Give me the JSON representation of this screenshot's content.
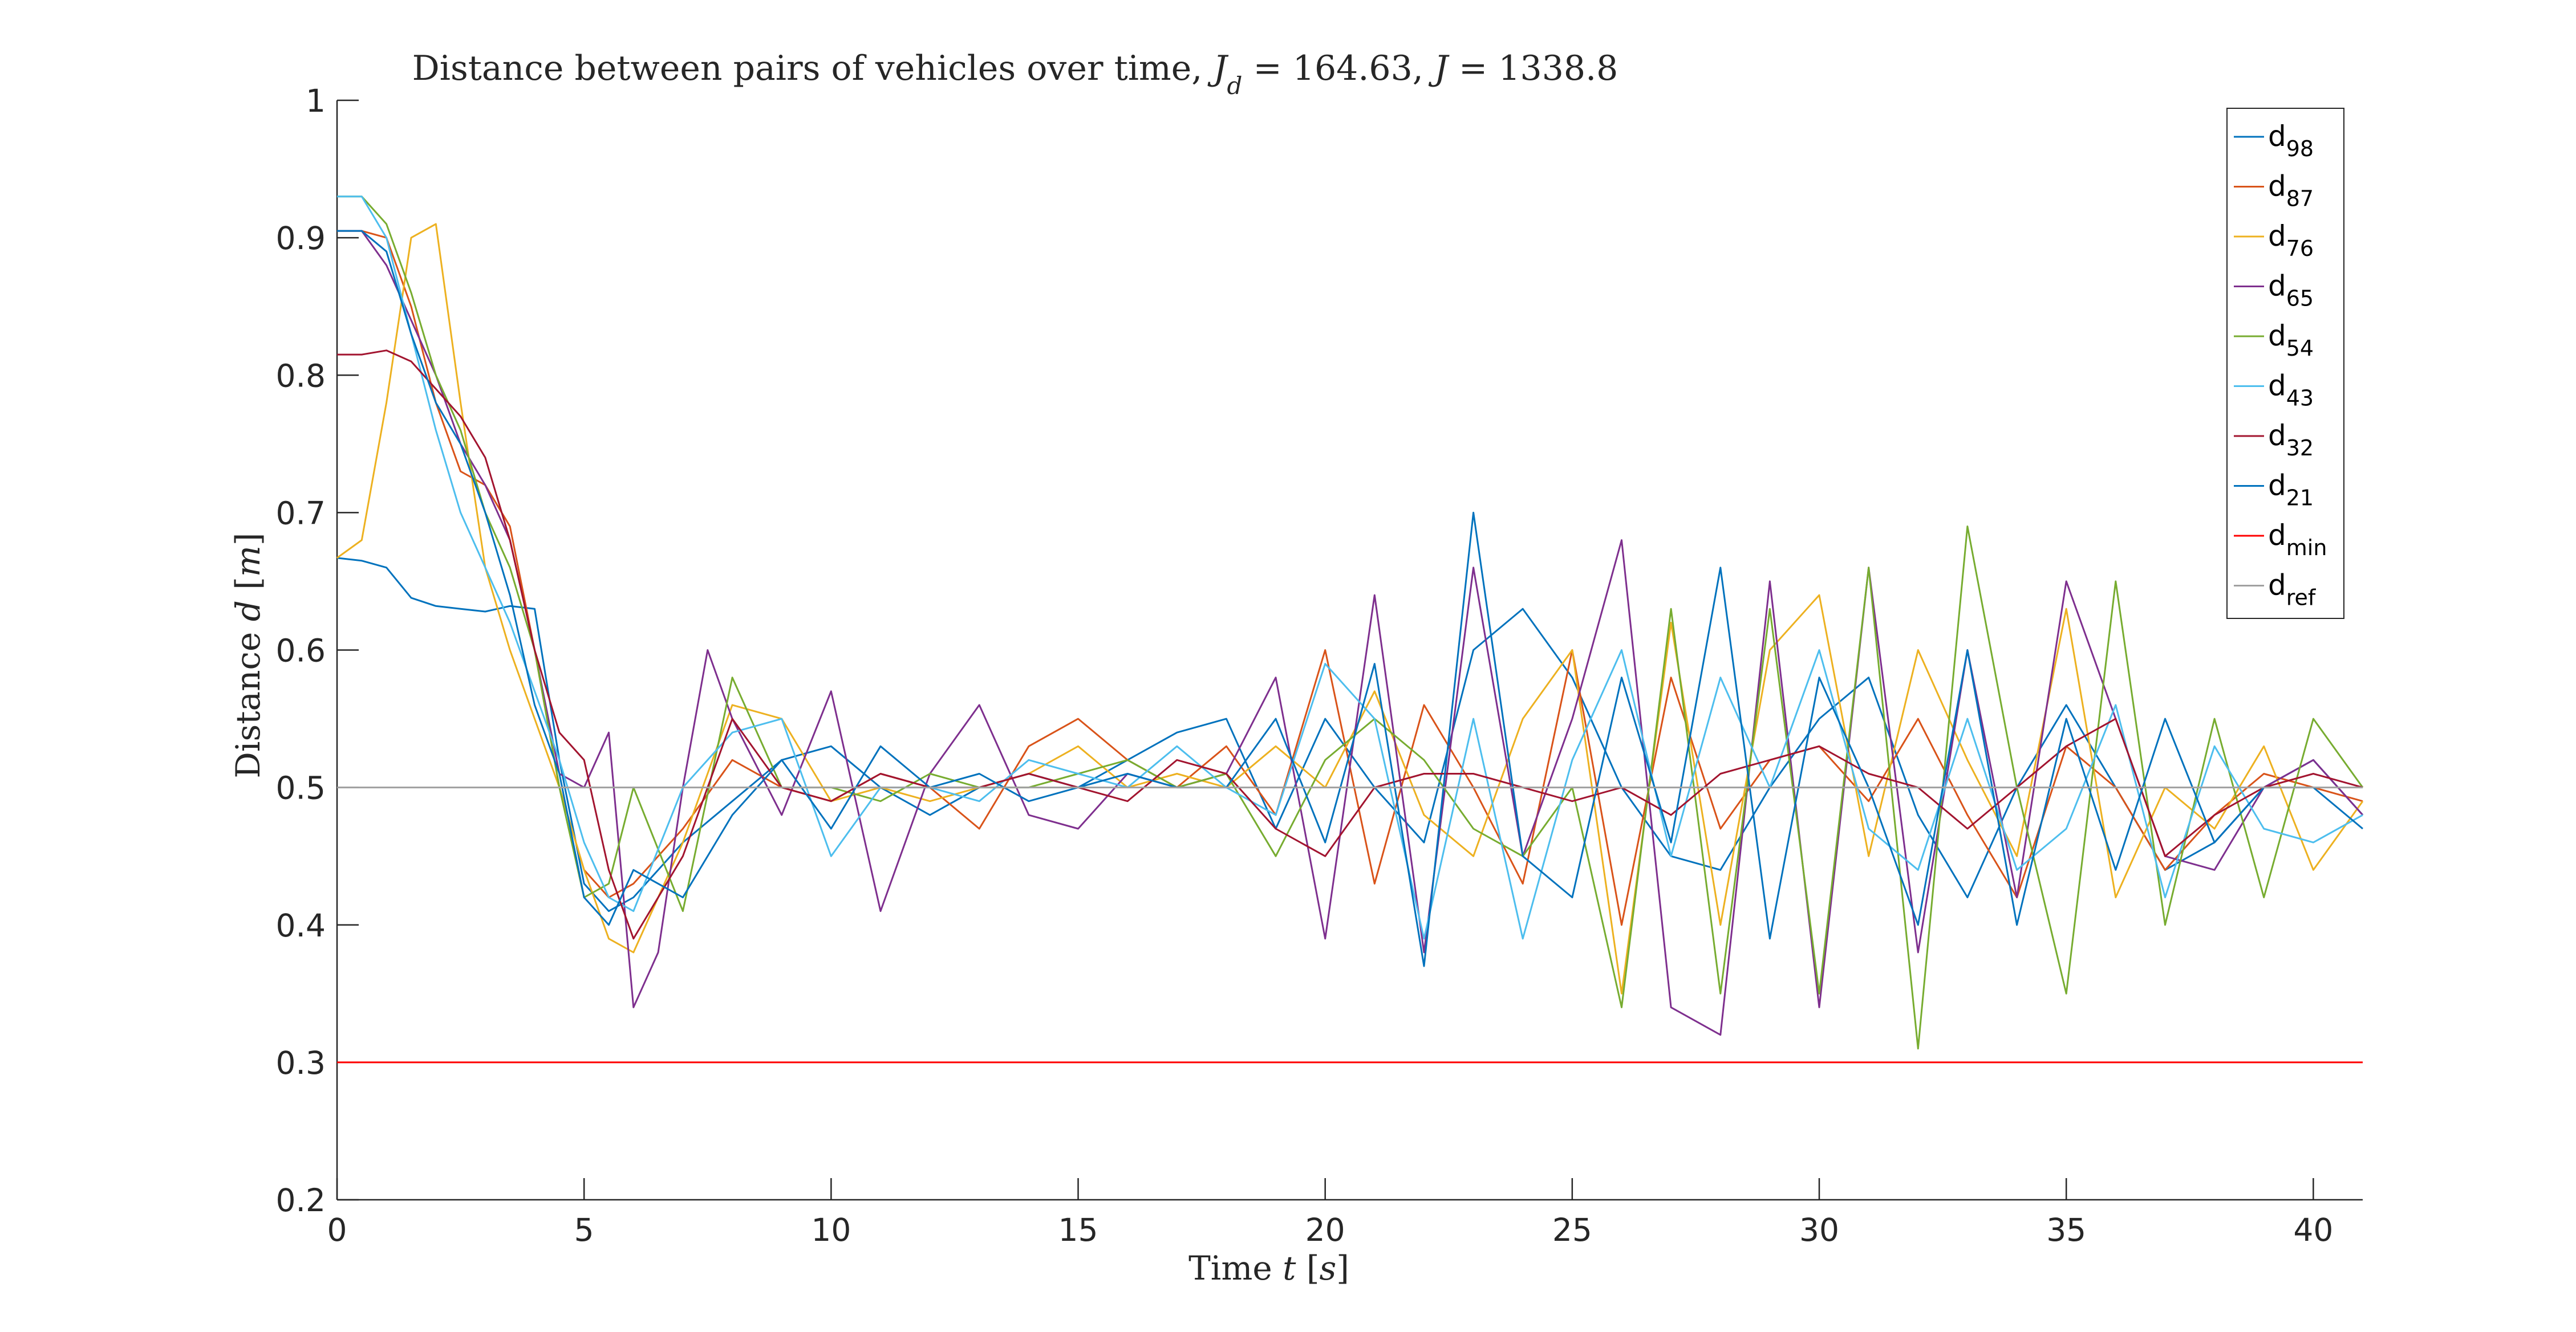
{
  "chart_data": {
    "type": "line",
    "title": "Distance between pairs of vehicles over time, J_d = 164.63, J = 1338.8",
    "title_parts": [
      {
        "text": "Distance between pairs of vehicles over time, ",
        "style": "normal"
      },
      {
        "text": "J",
        "style": "italic"
      },
      {
        "text": "d",
        "style": "italic-sub"
      },
      {
        "text": " = 164.63, ",
        "style": "normal"
      },
      {
        "text": "J",
        "style": "italic"
      },
      {
        "text": " = 1338.8",
        "style": "normal"
      }
    ],
    "xlabel_parts": [
      {
        "text": "Time ",
        "style": "normal"
      },
      {
        "text": "t",
        "style": "italic"
      },
      {
        "text": " [",
        "style": "normal"
      },
      {
        "text": "s",
        "style": "italic"
      },
      {
        "text": "]",
        "style": "normal"
      }
    ],
    "ylabel_parts": [
      {
        "text": "Distance ",
        "style": "normal"
      },
      {
        "text": "d",
        "style": "italic"
      },
      {
        "text": " [",
        "style": "normal"
      },
      {
        "text": "m",
        "style": "italic"
      },
      {
        "text": "]",
        "style": "normal"
      }
    ],
    "xlim": [
      0,
      41
    ],
    "ylim": [
      0.2,
      1.0
    ],
    "xticks": [
      0,
      5,
      10,
      15,
      20,
      25,
      30,
      35,
      40
    ],
    "xtick_labels": [
      "0",
      "5",
      "10",
      "15",
      "20",
      "25",
      "30",
      "35",
      "40"
    ],
    "yticks": [
      0.2,
      0.3,
      0.4,
      0.5,
      0.6,
      0.7,
      0.8,
      0.9,
      1.0
    ],
    "ytick_labels": [
      "0.2",
      "0.3",
      "0.4",
      "0.5",
      "0.6",
      "0.7",
      "0.8",
      "0.9",
      "1"
    ],
    "grid": false,
    "legend_position": "top-right",
    "series": [
      {
        "name": "d_98",
        "label": "d",
        "sub": "98",
        "color": "#0072BD",
        "x": [
          0,
          0.5,
          1,
          1.5,
          2,
          2.5,
          3,
          3.5,
          4,
          4.5,
          5,
          5.5,
          6,
          7,
          8,
          9,
          10,
          11,
          12,
          13,
          14,
          15,
          16,
          17,
          18,
          19,
          20,
          21,
          22,
          23,
          24,
          25,
          26,
          27,
          28,
          29,
          30,
          31,
          32,
          33,
          34,
          35,
          36,
          37,
          38,
          39,
          40,
          41
        ],
        "y": [
          0.667,
          0.665,
          0.66,
          0.638,
          0.632,
          0.63,
          0.628,
          0.632,
          0.63,
          0.52,
          0.43,
          0.41,
          0.42,
          0.46,
          0.49,
          0.52,
          0.53,
          0.5,
          0.48,
          0.5,
          0.51,
          0.5,
          0.52,
          0.54,
          0.55,
          0.47,
          0.55,
          0.5,
          0.46,
          0.6,
          0.63,
          0.58,
          0.5,
          0.45,
          0.44,
          0.5,
          0.55,
          0.58,
          0.48,
          0.42,
          0.5,
          0.56,
          0.5,
          0.44,
          0.46,
          0.5,
          0.52,
          0.48
        ]
      },
      {
        "name": "d_87",
        "label": "d",
        "sub": "87",
        "color": "#D95319",
        "x": [
          0,
          0.5,
          1,
          1.5,
          2,
          2.5,
          3,
          3.5,
          4,
          4.5,
          5,
          5.5,
          6,
          7,
          8,
          9,
          10,
          11,
          12,
          13,
          14,
          15,
          16,
          17,
          18,
          19,
          20,
          21,
          22,
          23,
          24,
          25,
          26,
          27,
          28,
          29,
          30,
          31,
          32,
          33,
          34,
          35,
          36,
          37,
          38,
          39,
          40,
          41
        ],
        "y": [
          0.905,
          0.905,
          0.9,
          0.85,
          0.78,
          0.73,
          0.72,
          0.69,
          0.6,
          0.5,
          0.44,
          0.42,
          0.43,
          0.47,
          0.52,
          0.5,
          0.49,
          0.51,
          0.5,
          0.47,
          0.53,
          0.55,
          0.52,
          0.5,
          0.53,
          0.48,
          0.6,
          0.43,
          0.56,
          0.5,
          0.43,
          0.6,
          0.4,
          0.58,
          0.47,
          0.52,
          0.53,
          0.49,
          0.55,
          0.48,
          0.42,
          0.53,
          0.5,
          0.44,
          0.48,
          0.51,
          0.5,
          0.49
        ]
      },
      {
        "name": "d_76",
        "label": "d",
        "sub": "76",
        "color": "#EDB120",
        "x": [
          0,
          0.5,
          1,
          1.5,
          2,
          2.5,
          3,
          3.5,
          4,
          4.5,
          5,
          5.5,
          6,
          7,
          8,
          9,
          10,
          11,
          12,
          13,
          14,
          15,
          16,
          17,
          18,
          19,
          20,
          21,
          22,
          23,
          24,
          25,
          26,
          27,
          28,
          29,
          30,
          31,
          32,
          33,
          34,
          35,
          36,
          37,
          38,
          39,
          40,
          41
        ],
        "y": [
          0.667,
          0.68,
          0.78,
          0.9,
          0.91,
          0.78,
          0.66,
          0.6,
          0.55,
          0.5,
          0.44,
          0.39,
          0.38,
          0.46,
          0.56,
          0.55,
          0.49,
          0.5,
          0.49,
          0.5,
          0.51,
          0.53,
          0.5,
          0.51,
          0.5,
          0.53,
          0.5,
          0.57,
          0.48,
          0.45,
          0.55,
          0.6,
          0.35,
          0.62,
          0.4,
          0.6,
          0.64,
          0.45,
          0.6,
          0.52,
          0.45,
          0.63,
          0.42,
          0.5,
          0.47,
          0.53,
          0.44,
          0.49
        ]
      },
      {
        "name": "d_65",
        "label": "d",
        "sub": "65",
        "color": "#7E2F8E",
        "x": [
          0,
          0.5,
          1,
          1.5,
          2,
          2.5,
          3,
          3.5,
          4,
          4.5,
          5,
          5.5,
          6,
          6.5,
          7,
          7.5,
          8,
          9,
          10,
          11,
          12,
          13,
          14,
          15,
          16,
          17,
          18,
          19,
          20,
          21,
          22,
          23,
          24,
          25,
          26,
          27,
          28,
          29,
          30,
          31,
          32,
          33,
          34,
          35,
          36,
          37,
          38,
          39,
          40,
          41
        ],
        "y": [
          0.905,
          0.905,
          0.88,
          0.84,
          0.8,
          0.75,
          0.72,
          0.68,
          0.6,
          0.51,
          0.5,
          0.54,
          0.34,
          0.38,
          0.5,
          0.6,
          0.55,
          0.48,
          0.57,
          0.41,
          0.51,
          0.56,
          0.48,
          0.47,
          0.51,
          0.5,
          0.51,
          0.58,
          0.39,
          0.64,
          0.38,
          0.66,
          0.45,
          0.55,
          0.68,
          0.34,
          0.32,
          0.65,
          0.34,
          0.66,
          0.38,
          0.6,
          0.42,
          0.65,
          0.55,
          0.45,
          0.44,
          0.5,
          0.52,
          0.48
        ]
      },
      {
        "name": "d_54",
        "label": "d",
        "sub": "54",
        "color": "#77AC30",
        "x": [
          0,
          0.5,
          1,
          1.5,
          2,
          2.5,
          3,
          3.5,
          4,
          4.5,
          5,
          5.5,
          6,
          7,
          8,
          9,
          10,
          11,
          12,
          13,
          14,
          15,
          16,
          17,
          18,
          19,
          20,
          21,
          22,
          23,
          24,
          25,
          26,
          27,
          28,
          29,
          30,
          31,
          32,
          33,
          34,
          35,
          36,
          37,
          38,
          39,
          40,
          41
        ],
        "y": [
          0.93,
          0.93,
          0.91,
          0.86,
          0.8,
          0.76,
          0.7,
          0.66,
          0.6,
          0.5,
          0.42,
          0.43,
          0.5,
          0.41,
          0.58,
          0.5,
          0.5,
          0.49,
          0.51,
          0.5,
          0.5,
          0.51,
          0.52,
          0.5,
          0.51,
          0.45,
          0.52,
          0.55,
          0.52,
          0.47,
          0.45,
          0.5,
          0.34,
          0.63,
          0.35,
          0.63,
          0.35,
          0.66,
          0.31,
          0.69,
          0.5,
          0.35,
          0.65,
          0.4,
          0.55,
          0.42,
          0.55,
          0.5
        ]
      },
      {
        "name": "d_43",
        "label": "d",
        "sub": "43",
        "color": "#4DBEEE",
        "x": [
          0,
          0.5,
          1,
          1.5,
          2,
          2.5,
          3,
          3.5,
          4,
          4.5,
          5,
          5.5,
          6,
          7,
          8,
          9,
          10,
          11,
          12,
          13,
          14,
          15,
          16,
          17,
          18,
          19,
          20,
          21,
          22,
          23,
          24,
          25,
          26,
          27,
          28,
          29,
          30,
          31,
          32,
          33,
          34,
          35,
          36,
          37,
          38,
          39,
          40,
          41
        ],
        "y": [
          0.93,
          0.93,
          0.9,
          0.83,
          0.76,
          0.7,
          0.66,
          0.62,
          0.57,
          0.52,
          0.46,
          0.42,
          0.41,
          0.5,
          0.54,
          0.55,
          0.45,
          0.5,
          0.5,
          0.49,
          0.52,
          0.51,
          0.5,
          0.53,
          0.5,
          0.48,
          0.59,
          0.55,
          0.39,
          0.55,
          0.39,
          0.52,
          0.6,
          0.45,
          0.58,
          0.5,
          0.6,
          0.47,
          0.44,
          0.55,
          0.44,
          0.47,
          0.56,
          0.42,
          0.53,
          0.47,
          0.46,
          0.48
        ]
      },
      {
        "name": "d_32",
        "label": "d",
        "sub": "32",
        "color": "#A2142F",
        "x": [
          0,
          0.5,
          1,
          1.5,
          2,
          2.5,
          3,
          3.5,
          4,
          4.5,
          5,
          5.5,
          6,
          7,
          8,
          9,
          10,
          11,
          12,
          13,
          14,
          15,
          16,
          17,
          18,
          19,
          20,
          21,
          22,
          23,
          24,
          25,
          26,
          27,
          28,
          29,
          30,
          31,
          32,
          33,
          34,
          35,
          36,
          37,
          38,
          39,
          40,
          41
        ],
        "y": [
          0.815,
          0.815,
          0.818,
          0.81,
          0.79,
          0.77,
          0.74,
          0.68,
          0.6,
          0.54,
          0.52,
          0.44,
          0.39,
          0.45,
          0.55,
          0.5,
          0.49,
          0.51,
          0.5,
          0.5,
          0.51,
          0.5,
          0.49,
          0.52,
          0.51,
          0.47,
          0.45,
          0.5,
          0.51,
          0.51,
          0.5,
          0.49,
          0.5,
          0.48,
          0.51,
          0.52,
          0.53,
          0.51,
          0.5,
          0.47,
          0.5,
          0.53,
          0.55,
          0.45,
          0.48,
          0.5,
          0.51,
          0.5
        ]
      },
      {
        "name": "d_21",
        "label": "d",
        "sub": "21",
        "color": "#0072BD",
        "x": [
          0,
          0.5,
          1,
          1.5,
          2,
          2.5,
          3,
          3.5,
          4,
          4.5,
          5,
          5.5,
          6,
          7,
          8,
          9,
          10,
          11,
          12,
          13,
          14,
          15,
          16,
          17,
          18,
          19,
          20,
          21,
          22,
          23,
          24,
          25,
          26,
          27,
          28,
          29,
          30,
          31,
          32,
          33,
          34,
          35,
          36,
          37,
          38,
          39,
          40,
          41
        ],
        "y": [
          0.905,
          0.905,
          0.89,
          0.83,
          0.78,
          0.75,
          0.7,
          0.64,
          0.56,
          0.51,
          0.42,
          0.4,
          0.44,
          0.42,
          0.48,
          0.52,
          0.47,
          0.53,
          0.5,
          0.51,
          0.49,
          0.5,
          0.51,
          0.5,
          0.5,
          0.55,
          0.46,
          0.59,
          0.37,
          0.7,
          0.45,
          0.42,
          0.58,
          0.46,
          0.66,
          0.39,
          0.58,
          0.5,
          0.4,
          0.6,
          0.4,
          0.55,
          0.44,
          0.55,
          0.46,
          0.5,
          0.5,
          0.47
        ]
      },
      {
        "name": "d_min",
        "label": "d",
        "sub": "min",
        "color": "#FF0000",
        "x": [
          0,
          41
        ],
        "y": [
          0.3,
          0.3
        ]
      },
      {
        "name": "d_ref",
        "label": "d",
        "sub": "ref",
        "color": "#A0A0A0",
        "x": [
          0,
          41
        ],
        "y": [
          0.5,
          0.5
        ]
      }
    ]
  }
}
